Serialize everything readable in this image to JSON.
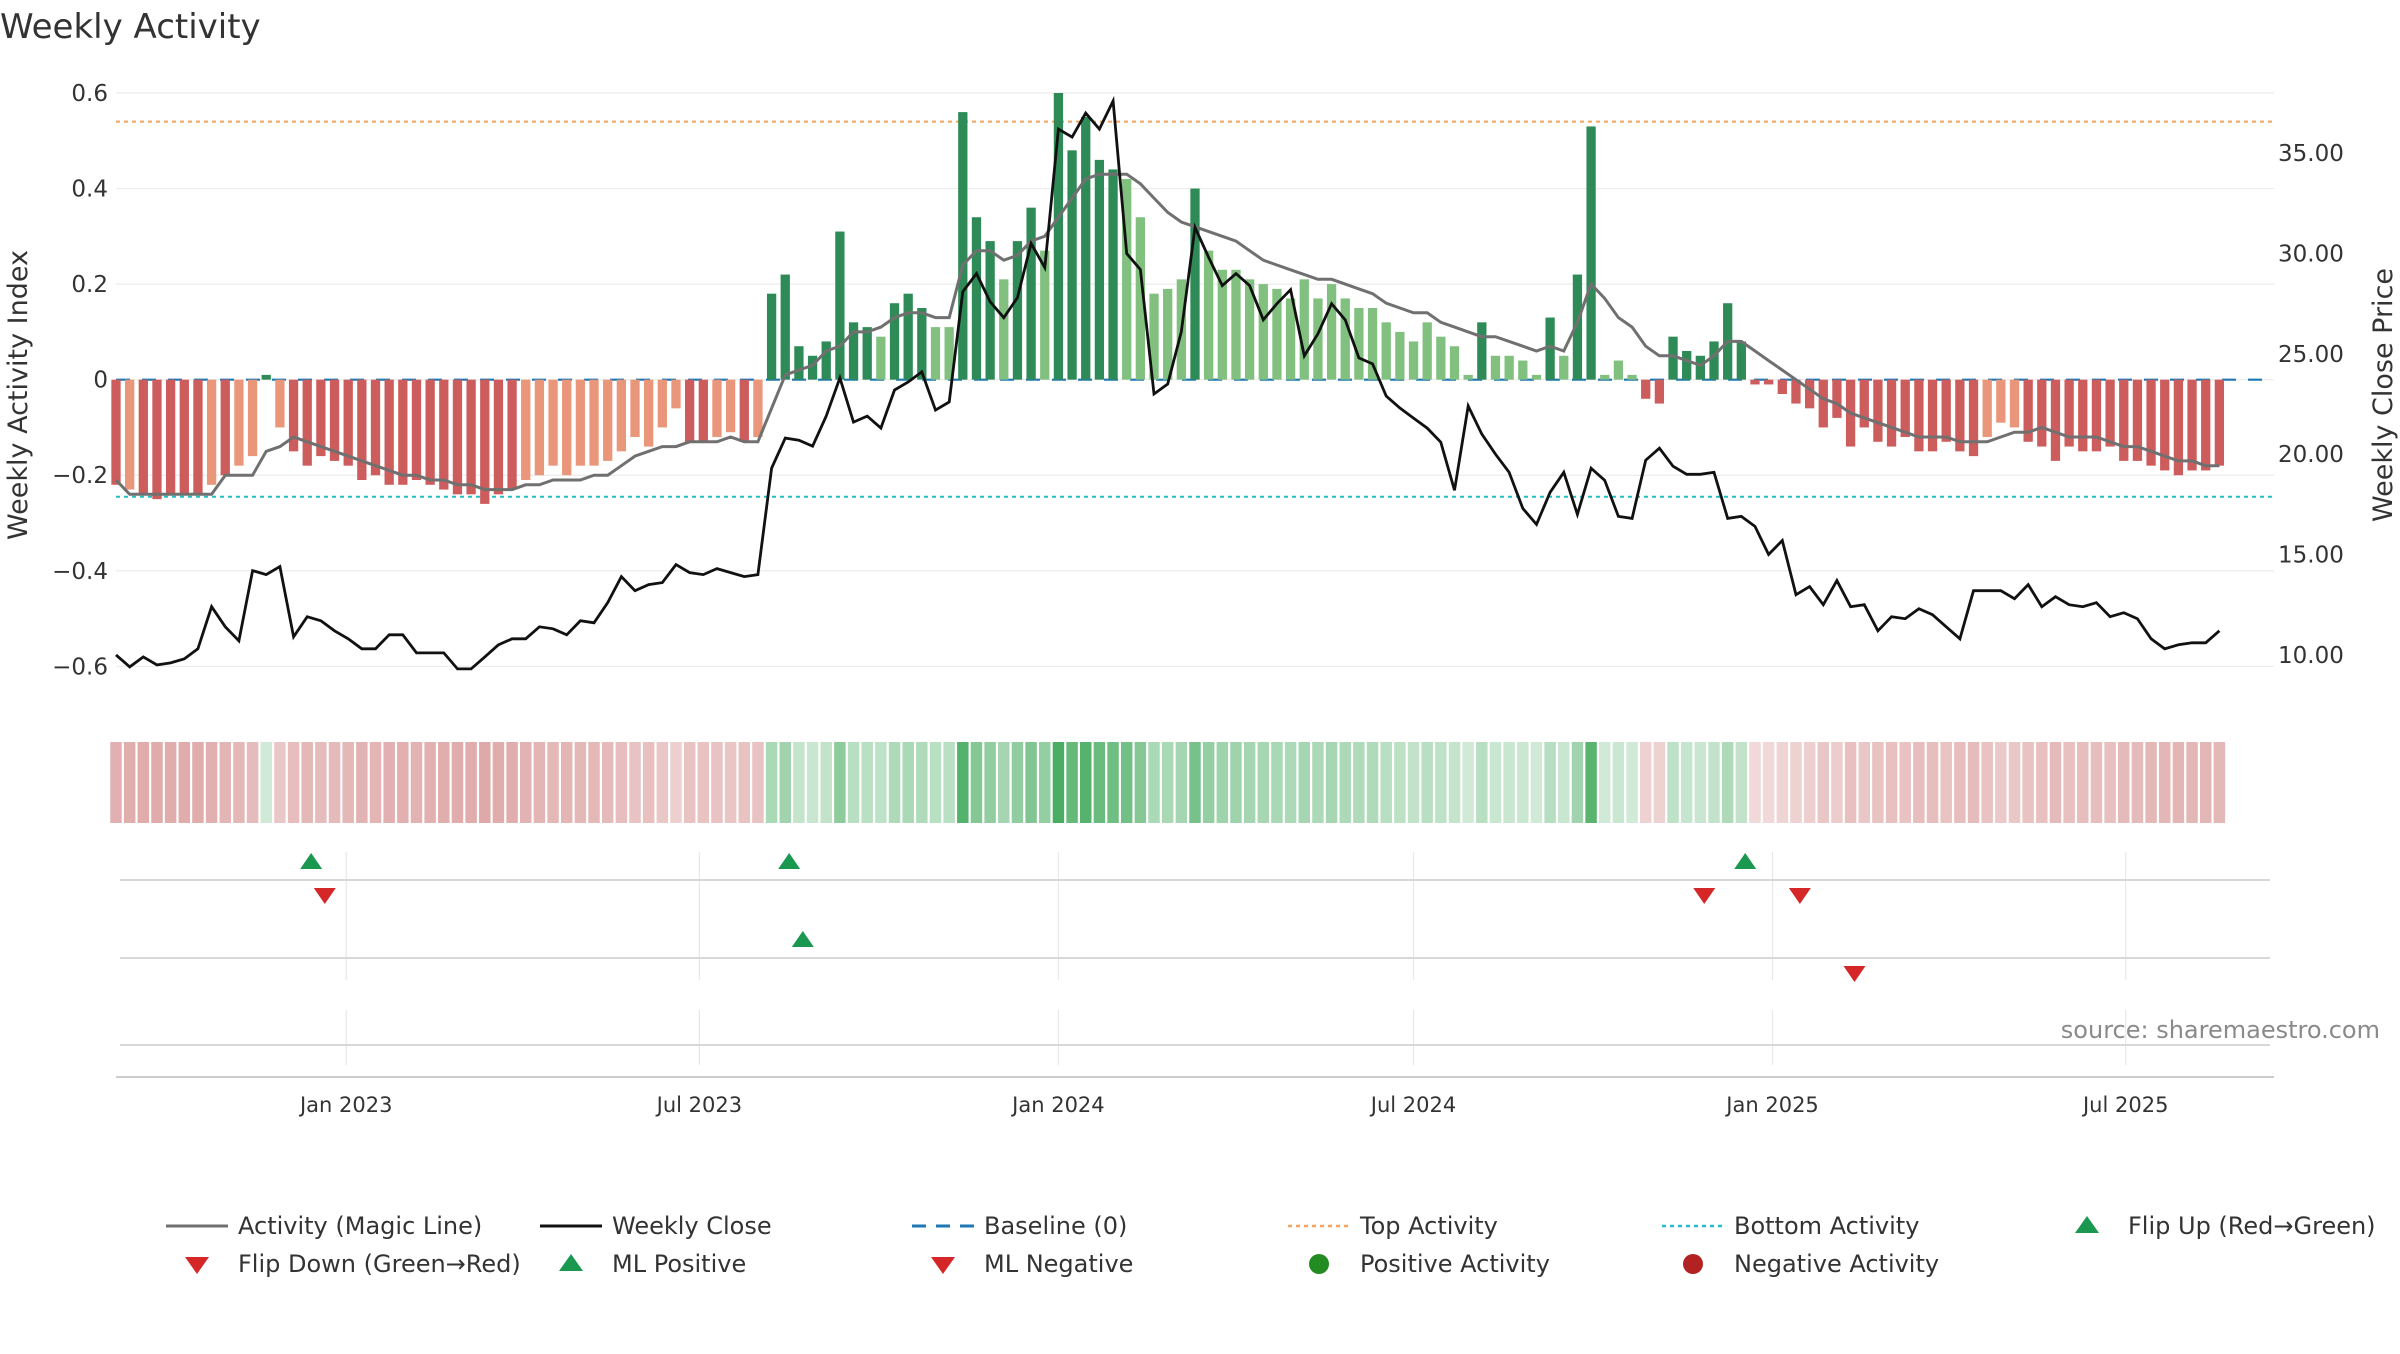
{
  "chart_data": {
    "type": "bar",
    "title": "Weekly Activity",
    "ylabel": "Weekly Activity Index",
    "y2label": "Weekly Close Price",
    "ylim": [
      -0.66,
      0.6
    ],
    "y2lim": [
      8.0,
      38.0
    ],
    "yticks": [
      0.6,
      0.4,
      0.2,
      0,
      -0.2,
      -0.4,
      -0.6
    ],
    "ytick_labels": [
      "0.6",
      "0.4",
      "0.2",
      "0",
      "−0.2",
      "−0.4",
      "−0.6"
    ],
    "y2ticks": [
      35,
      30,
      25,
      20,
      15,
      10
    ],
    "y2tick_labels": [
      "35.00",
      "30.00",
      "25.00",
      "20.00",
      "15.00",
      "10.00"
    ],
    "xlim": [
      "2022-09-05",
      "2025-09-15"
    ],
    "xticks": [
      "2023-01-01",
      "2023-07-01",
      "2024-01-01",
      "2024-07-01",
      "2025-01-01",
      "2025-07-01"
    ],
    "xtick_labels": [
      "Jan 2023",
      "Jul 2023",
      "Jan 2024",
      "Jul 2024",
      "Jan 2025",
      "Jul 2025"
    ],
    "top_activity": 0.54,
    "bottom_activity": -0.245,
    "grid": true,
    "source": "source: sharemaestro.com",
    "colors": {
      "pos_strong": "#2e8b57",
      "pos_light": "#81c07f",
      "neg_strong": "#cd5c5c",
      "neg_light": "#e9967a",
      "magic_line": "#707070",
      "close_line": "#111111",
      "baseline": "#1f77b4",
      "top": "#f4a460",
      "bottom": "#20c0c8",
      "marker_up": "#1a9850",
      "marker_down": "#d62728",
      "pos_dot": "#228b22",
      "neg_dot": "#b22222"
    },
    "start_date": "2022-09-05",
    "series": [
      {
        "name": "Weekly Activity Index",
        "type": "bar",
        "values": [
          -0.22,
          -0.23,
          -0.24,
          -0.25,
          -0.24,
          -0.24,
          -0.24,
          -0.22,
          -0.2,
          -0.18,
          -0.16,
          0.01,
          -0.1,
          -0.15,
          -0.18,
          -0.16,
          -0.17,
          -0.18,
          -0.21,
          -0.2,
          -0.22,
          -0.22,
          -0.21,
          -0.22,
          -0.23,
          -0.24,
          -0.24,
          -0.26,
          -0.24,
          -0.23,
          -0.21,
          -0.2,
          -0.18,
          -0.2,
          -0.18,
          -0.18,
          -0.17,
          -0.15,
          -0.12,
          -0.14,
          -0.1,
          -0.06,
          -0.13,
          -0.13,
          -0.12,
          -0.11,
          -0.13,
          -0.12,
          0.18,
          0.22,
          0.07,
          0.05,
          0.08,
          0.31,
          0.12,
          0.11,
          0.09,
          0.16,
          0.18,
          0.15,
          0.11,
          0.11,
          0.56,
          0.34,
          0.29,
          0.21,
          0.29,
          0.36,
          0.27,
          0.6,
          0.48,
          0.55,
          0.46,
          0.44,
          0.42,
          0.34,
          0.18,
          0.19,
          0.21,
          0.4,
          0.27,
          0.23,
          0.23,
          0.21,
          0.2,
          0.19,
          0.17,
          0.21,
          0.17,
          0.2,
          0.17,
          0.15,
          0.15,
          0.12,
          0.1,
          0.08,
          0.12,
          0.09,
          0.07,
          0.01,
          0.12,
          0.05,
          0.05,
          0.04,
          0.01,
          0.13,
          0.05,
          0.22,
          0.53,
          0.01,
          0.04,
          0.01,
          -0.04,
          -0.05,
          0.09,
          0.06,
          0.05,
          0.08,
          0.16,
          0.08,
          -0.01,
          -0.01,
          -0.03,
          -0.05,
          -0.06,
          -0.1,
          -0.08,
          -0.14,
          -0.1,
          -0.13,
          -0.14,
          -0.12,
          -0.15,
          -0.15,
          -0.13,
          -0.15,
          -0.16,
          -0.12,
          -0.09,
          -0.1,
          -0.13,
          -0.14,
          -0.17,
          -0.14,
          -0.15,
          -0.15,
          -0.14,
          -0.17,
          -0.17,
          -0.18,
          -0.19,
          -0.2,
          -0.19,
          -0.19,
          -0.18
        ]
      },
      {
        "name": "Activity (Magic Line)",
        "type": "line",
        "values": [
          -0.21,
          -0.24,
          -0.24,
          -0.24,
          -0.24,
          -0.24,
          -0.24,
          -0.24,
          -0.2,
          -0.2,
          -0.2,
          -0.15,
          -0.14,
          -0.12,
          -0.13,
          -0.14,
          -0.15,
          -0.16,
          -0.17,
          -0.18,
          -0.19,
          -0.2,
          -0.2,
          -0.21,
          -0.21,
          -0.22,
          -0.22,
          -0.23,
          -0.23,
          -0.23,
          -0.22,
          -0.22,
          -0.21,
          -0.21,
          -0.21,
          -0.2,
          -0.2,
          -0.18,
          -0.16,
          -0.15,
          -0.14,
          -0.14,
          -0.13,
          -0.13,
          -0.13,
          -0.12,
          -0.13,
          -0.13,
          -0.06,
          0.01,
          0.02,
          0.03,
          0.06,
          0.07,
          0.1,
          0.1,
          0.11,
          0.13,
          0.14,
          0.14,
          0.13,
          0.13,
          0.24,
          0.27,
          0.27,
          0.25,
          0.26,
          0.29,
          0.3,
          0.34,
          0.38,
          0.42,
          0.43,
          0.43,
          0.43,
          0.41,
          0.38,
          0.35,
          0.33,
          0.32,
          0.31,
          0.3,
          0.29,
          0.27,
          0.25,
          0.24,
          0.23,
          0.22,
          0.21,
          0.21,
          0.2,
          0.19,
          0.18,
          0.16,
          0.15,
          0.14,
          0.14,
          0.12,
          0.11,
          0.1,
          0.09,
          0.09,
          0.08,
          0.07,
          0.06,
          0.07,
          0.06,
          0.12,
          0.2,
          0.17,
          0.13,
          0.11,
          0.07,
          0.05,
          0.05,
          0.04,
          0.03,
          0.05,
          0.08,
          0.08,
          0.06,
          0.04,
          0.02,
          0.0,
          -0.02,
          -0.04,
          -0.05,
          -0.07,
          -0.08,
          -0.09,
          -0.1,
          -0.11,
          -0.12,
          -0.12,
          -0.12,
          -0.13,
          -0.13,
          -0.13,
          -0.12,
          -0.11,
          -0.11,
          -0.1,
          -0.11,
          -0.12,
          -0.12,
          -0.12,
          -0.13,
          -0.14,
          -0.14,
          -0.15,
          -0.16,
          -0.17,
          -0.17,
          -0.18,
          -0.18
        ]
      },
      {
        "name": "Weekly Close",
        "type": "line",
        "axis": "right",
        "values": [
          10.0,
          9.4,
          9.9,
          9.5,
          9.6,
          9.8,
          10.3,
          12.4,
          11.4,
          10.7,
          14.2,
          14.0,
          14.4,
          10.9,
          11.9,
          11.7,
          11.2,
          10.8,
          10.3,
          10.3,
          11.0,
          11.0,
          10.1,
          10.1,
          10.1,
          9.3,
          9.3,
          9.9,
          10.5,
          10.8,
          10.8,
          11.4,
          11.3,
          11.0,
          11.7,
          11.6,
          12.6,
          13.9,
          13.2,
          13.5,
          13.6,
          14.5,
          14.1,
          14.0,
          14.3,
          14.1,
          13.9,
          14.0,
          19.3,
          20.8,
          20.7,
          20.4,
          21.9,
          23.8,
          21.6,
          21.9,
          21.3,
          23.2,
          23.6,
          24.1,
          22.2,
          22.6,
          28.1,
          29.0,
          27.6,
          26.8,
          27.8,
          30.5,
          29.3,
          36.2,
          35.8,
          37.0,
          36.2,
          37.6,
          30.0,
          29.2,
          23.0,
          23.5,
          26.1,
          31.3,
          29.8,
          28.4,
          29.0,
          28.4,
          26.7,
          27.5,
          28.2,
          24.9,
          26.0,
          27.5,
          26.7,
          24.8,
          24.5,
          22.9,
          22.3,
          21.8,
          21.3,
          20.6,
          18.2,
          22.4,
          21.0,
          20.0,
          19.1,
          17.3,
          16.5,
          18.1,
          19.1,
          17.0,
          19.3,
          18.7,
          16.9,
          16.8,
          19.7,
          20.3,
          19.4,
          19.0,
          19.0,
          19.1,
          16.8,
          16.9,
          16.4,
          15.0,
          15.7,
          13.0,
          13.4,
          12.5,
          13.7,
          12.4,
          12.5,
          11.2,
          11.9,
          11.8,
          12.3,
          12.0,
          11.4,
          10.8,
          13.2,
          13.2,
          13.2,
          12.8,
          13.5,
          12.4,
          12.9,
          12.5,
          12.4,
          12.6,
          11.9,
          12.1,
          11.8,
          10.8,
          10.3,
          10.5,
          10.6,
          10.6,
          11.2
        ]
      }
    ],
    "flip_up": [
      "2022-12-14",
      "2023-08-16",
      "2024-12-18"
    ],
    "flip_down": [
      "2022-12-21",
      "2024-11-27",
      "2025-01-15"
    ],
    "ml_positive": [
      "2023-08-23"
    ],
    "ml_negative": [
      "2025-02-12"
    ],
    "legend": [
      {
        "label": "Activity (Magic Line)",
        "kind": "line-gray"
      },
      {
        "label": "Weekly Close",
        "kind": "line-black"
      },
      {
        "label": "Baseline (0)",
        "kind": "dash-blue"
      },
      {
        "label": "Top Activity",
        "kind": "dot-orange"
      },
      {
        "label": "Bottom Activity",
        "kind": "dot-cyan"
      },
      {
        "label": "Flip Up (Red→Green)",
        "kind": "tri-up"
      },
      {
        "label": "Flip Down (Green→Red)",
        "kind": "tri-down"
      },
      {
        "label": "ML Positive",
        "kind": "tri-up"
      },
      {
        "label": "ML Negative",
        "kind": "tri-down"
      },
      {
        "label": "Positive Activity",
        "kind": "dot-green"
      },
      {
        "label": "Negative Activity",
        "kind": "dot-red"
      }
    ]
  }
}
